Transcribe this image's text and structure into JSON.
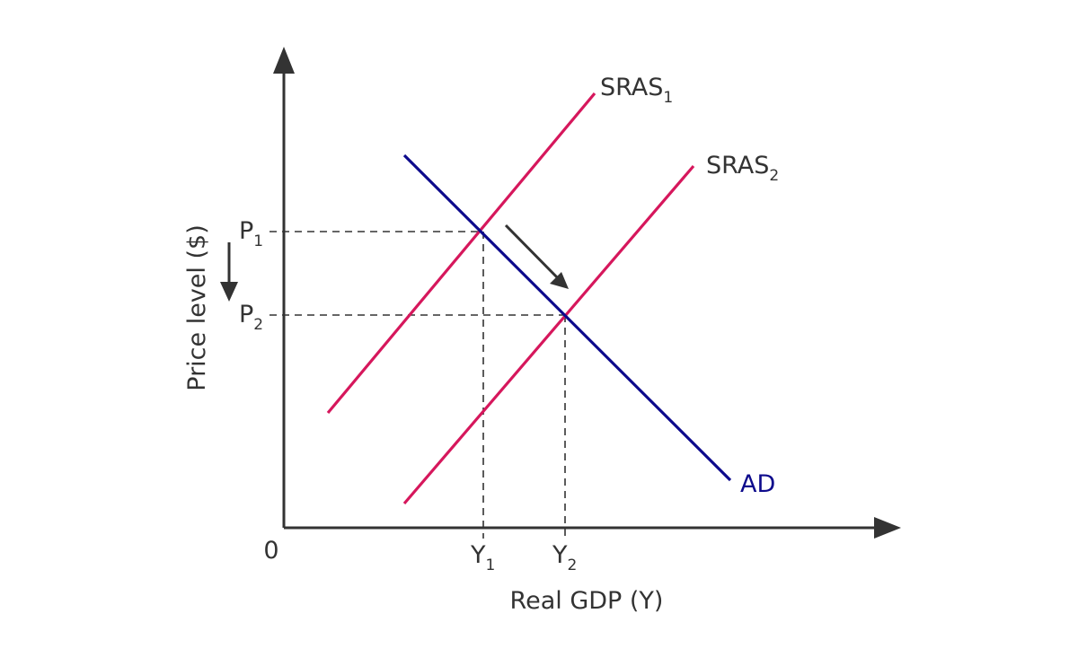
{
  "colors": {
    "sras": "#d6175c",
    "ad": "#0d0a8c",
    "axis": "#333333"
  },
  "labels": {
    "y_axis": "Price level ($)",
    "x_axis": "Real GDP (Y)",
    "origin": "0",
    "p1": {
      "base": "P",
      "sub": "1"
    },
    "p2": {
      "base": "P",
      "sub": "2"
    },
    "y1": {
      "base": "Y",
      "sub": "1"
    },
    "y2": {
      "base": "Y",
      "sub": "2"
    },
    "sras1": {
      "base": "SRAS",
      "sub": "1"
    },
    "sras2": {
      "base": "SRAS",
      "sub": "2"
    },
    "ad": "AD"
  },
  "curves": [
    {
      "name": "SRAS1",
      "label_key": "sras1",
      "type": "supply",
      "color": "sras"
    },
    {
      "name": "SRAS2",
      "label_key": "sras2",
      "type": "supply",
      "color": "sras"
    },
    {
      "name": "AD",
      "label_key": "ad",
      "type": "demand",
      "color": "ad"
    }
  ],
  "equilibria": [
    {
      "price": "P1",
      "output": "Y1",
      "on": [
        "SRAS1",
        "AD"
      ]
    },
    {
      "price": "P2",
      "output": "Y2",
      "on": [
        "SRAS2",
        "AD"
      ]
    }
  ],
  "arrows": [
    {
      "meaning": "equilibrium shifts from (Y1,P1) to (Y2,P2)"
    },
    {
      "meaning": "price level falls"
    }
  ]
}
